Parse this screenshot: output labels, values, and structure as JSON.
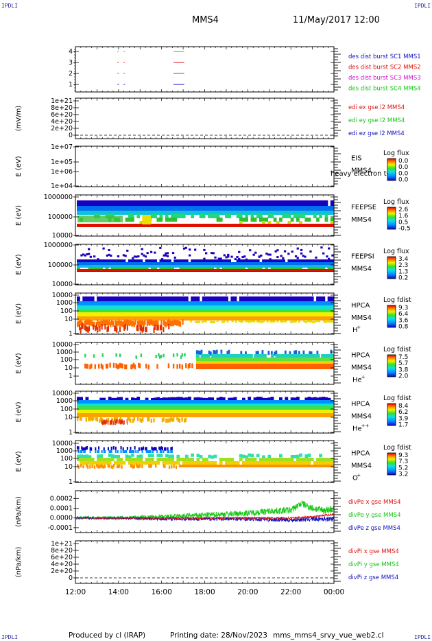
{
  "header": {
    "corner_tl": "IPDLI",
    "corner_tr": "IPDLI",
    "corner_bl": "IPDLI",
    "corner_br": "IPDLI",
    "spacecraft": "MMS4",
    "datetime": "11/May/2017 12:00"
  },
  "footer": {
    "produced": "Produced by cl (IRAP)",
    "printing": "Printing date: 28/Nov/2023",
    "file": "mms_mms4_srvy_vue_web2.cl"
  },
  "colors": {
    "c1": "#1010c0",
    "c2": "#e01010",
    "c3": "#d010d0",
    "c4": "#10c810",
    "edi_x": "#e01010",
    "edi_y": "#10c810",
    "edi_z": "#1010c0"
  },
  "chart_data": [
    {
      "id": "burst",
      "type": "line",
      "ylabel": "",
      "yticks": [
        "1",
        "2",
        "3",
        "4"
      ],
      "legend": [
        "des dist burst SC1 MMS1",
        "des dist burst SC2 MMS2",
        "des dist burst SC3 MMS3",
        "des dist burst SC4 MMS4"
      ],
      "series": [
        {
          "name": "des dist burst SC1 MMS1",
          "y": 1,
          "segments": [
            [
              13.95,
              14.3
            ],
            [
              16.55,
              17.05
            ]
          ]
        },
        {
          "name": "des dist burst SC2 MMS2",
          "y": 3,
          "segments": [
            [
              13.95,
              14.3
            ],
            [
              16.55,
              17.05
            ]
          ]
        },
        {
          "name": "des dist burst SC3 MMS3",
          "y": 2,
          "segments": [
            [
              13.95,
              14.3
            ],
            [
              16.55,
              17.05
            ]
          ]
        },
        {
          "name": "des dist burst SC4 MMS4",
          "y": 4,
          "segments": [
            [
              13.95,
              14.3
            ],
            [
              16.55,
              17.05
            ]
          ]
        }
      ]
    },
    {
      "id": "edi",
      "type": "line",
      "ylabel": "(mV/m)",
      "yticks": [
        "0",
        "2e+20",
        "4e+20",
        "6e+20",
        "8e+20",
        "1e+21"
      ],
      "legend": [
        "edi ex gse l2 MMS4",
        "edi ey gse l2 MMS4",
        "edi ez gse l2 MMS4"
      ],
      "series": []
    },
    {
      "id": "eis",
      "type": "heatmap",
      "ylabel": "E (eV)",
      "yticks": [
        "1e+04",
        "1e+05",
        "1e+06",
        "1e+07"
      ],
      "instrument": "EIS",
      "instrument_sub": "MMS4",
      "overlay_text": "heavy electron to",
      "cbar_title": "Log flux",
      "cbar_ticks": [
        "0.0",
        "0.0",
        "0.0",
        "0.0"
      ]
    },
    {
      "id": "feepse",
      "type": "heatmap",
      "ylabel": "E (eV)",
      "yticks": [
        "1000000",
        "100000",
        "10000"
      ],
      "instrument": "FEEPSE",
      "instrument_sub": "MMS4",
      "cbar_title": "Log flux",
      "cbar_ticks": [
        "2.6",
        "1.6",
        "0.5",
        "-0.5"
      ]
    },
    {
      "id": "feepsi",
      "type": "heatmap",
      "ylabel": "E (eV)",
      "yticks": [
        "1000000",
        "100000",
        "10000"
      ],
      "instrument": "FEEPSI",
      "instrument_sub": "MMS4",
      "cbar_title": "Log flux",
      "cbar_ticks": [
        "3.4",
        "2.3",
        "1.3",
        "0.2"
      ]
    },
    {
      "id": "hpca_h",
      "type": "heatmap",
      "ylabel": "E (eV)",
      "yticks": [
        "10000",
        "1000",
        "100",
        "10",
        "1"
      ],
      "instrument": "HPCA",
      "instrument_sub": "MMS4",
      "species": "H",
      "species_charge": "+",
      "cbar_title": "Log fdist",
      "cbar_ticks": [
        "9.3",
        "6.4",
        "3.6",
        "0.8"
      ]
    },
    {
      "id": "hpca_he",
      "type": "heatmap",
      "ylabel": "E (eV)",
      "yticks": [
        "10000",
        "1000",
        "100",
        "10",
        "1"
      ],
      "instrument": "HPCA",
      "instrument_sub": "MMS4",
      "species": "He",
      "species_charge": "+",
      "cbar_title": "Log fdist",
      "cbar_ticks": [
        "7.5",
        "5.7",
        "3.8",
        "2.0"
      ]
    },
    {
      "id": "hpca_hepp",
      "type": "heatmap",
      "ylabel": "E (eV)",
      "yticks": [
        "10000",
        "1000",
        "100",
        "10",
        "1"
      ],
      "instrument": "HPCA",
      "instrument_sub": "MMS4",
      "species": "He",
      "species_charge": "++",
      "cbar_title": "Log fdist",
      "cbar_ticks": [
        "8.4",
        "6.2",
        "3.9",
        "1.7"
      ]
    },
    {
      "id": "hpca_o",
      "type": "heatmap",
      "ylabel": "E (eV)",
      "yticks": [
        "10000",
        "1000",
        "100",
        "10",
        "1"
      ],
      "instrument": "HPCA",
      "instrument_sub": "MMS4",
      "species": "O",
      "species_charge": "+",
      "cbar_title": "Log fdist",
      "cbar_ticks": [
        "9.3",
        "7.3",
        "5.2",
        "3.2"
      ]
    },
    {
      "id": "divpe",
      "type": "line",
      "ylabel": "(nPa/km)",
      "yticks": [
        "-0.0001",
        "0.0000",
        "0.0001",
        "0.0002"
      ],
      "ylim": [
        -0.00015,
        0.00028
      ],
      "legend": [
        "divPe x gse MMS4",
        "divPe y gse MMS4",
        "divPe z gse MMS4"
      ],
      "series": [
        {
          "name": "divPe x gse MMS4",
          "x": [
            12,
            14,
            16,
            18,
            20,
            22,
            23,
            24
          ],
          "y": [
            0.0,
            0.0,
            0.0,
            0.0,
            0.0,
            0.0,
            1e-05,
            4e-05
          ]
        },
        {
          "name": "divPe y gse MMS4",
          "x": [
            12,
            14,
            16,
            18,
            20,
            21,
            22,
            22.5,
            23,
            23.5,
            24
          ],
          "y": [
            0.0,
            0.0,
            1e-05,
            3e-05,
            5e-05,
            7e-05,
            8e-05,
            0.00015,
            0.0001,
            8e-05,
            9e-05
          ]
        },
        {
          "name": "divPe z gse MMS4",
          "x": [
            12,
            14,
            16,
            18,
            20,
            22,
            23,
            24
          ],
          "y": [
            0.0,
            0.0,
            -1e-05,
            -1e-05,
            -1e-05,
            -2e-05,
            -1e-05,
            -1e-05
          ]
        }
      ]
    },
    {
      "id": "divpi",
      "type": "line",
      "ylabel": "(nPa/km)",
      "yticks": [
        "0",
        "2e+20",
        "4e+20",
        "6e+20",
        "8e+20",
        "1e+21"
      ],
      "legend": [
        "divPi x gse MMS4",
        "divPi y gse MMS4",
        "divPi z gse MMS4"
      ],
      "series": []
    }
  ],
  "xaxis": {
    "ticks": [
      "12:00",
      "14:00",
      "16:00",
      "18:00",
      "20:00",
      "22:00",
      "00:00"
    ]
  }
}
